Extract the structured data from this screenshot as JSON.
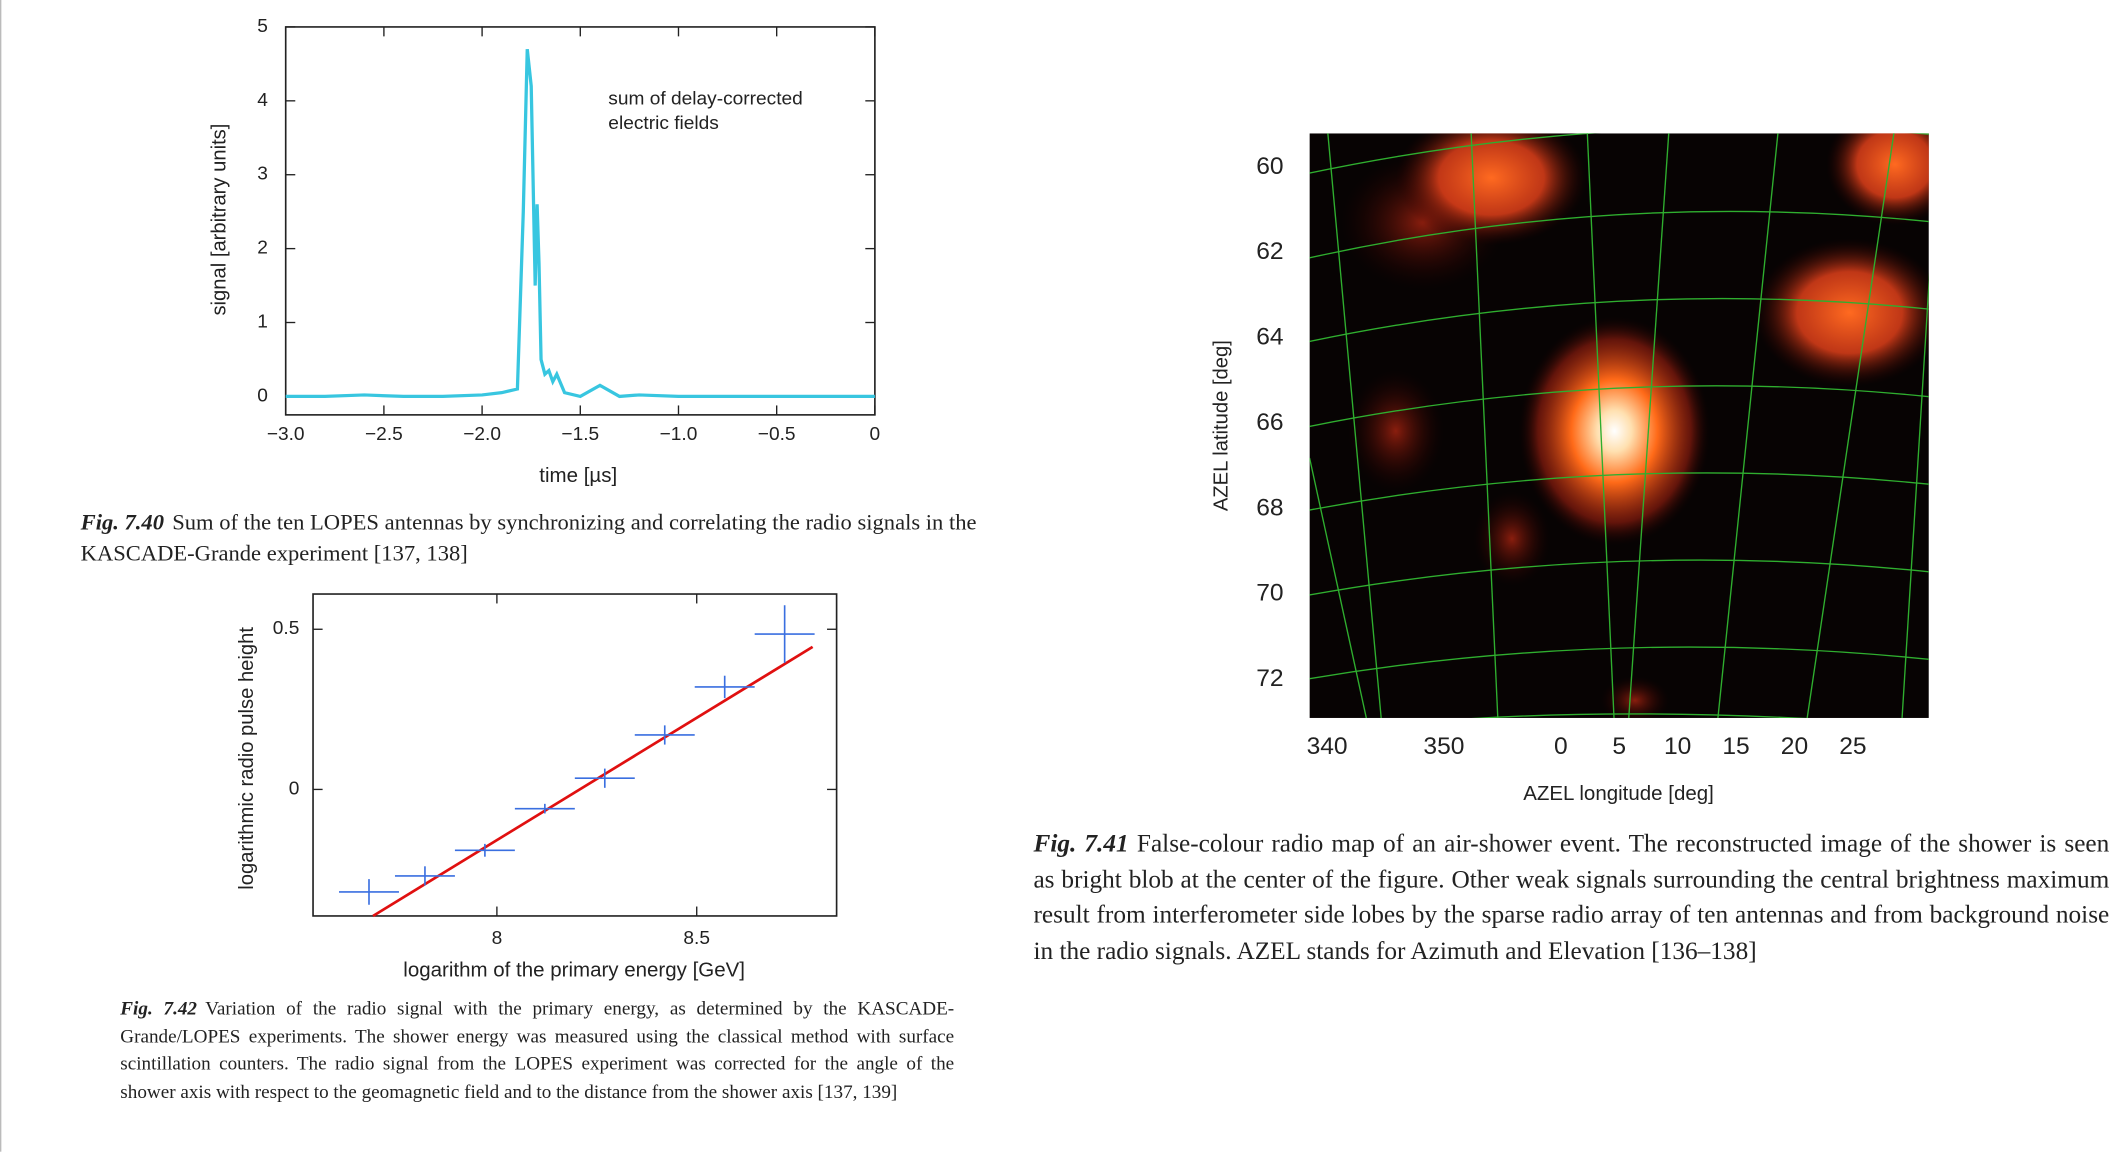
{
  "chart_data": [
    {
      "type": "line",
      "figure_label": "Fig. 7.40",
      "caption": "Sum of the ten LOPES  antennas by synchronizing and correlating the radio signals in the KASCADE-Grande experiment [137, 138]",
      "xlabel": "time [µs]",
      "ylabel": "signal [arbitrary units]",
      "annotation": [
        "sum of delay-corrected",
        "electric fields"
      ],
      "color": "#38c6e0",
      "x": [
        -3.0,
        -2.8,
        -2.6,
        -2.4,
        -2.2,
        -2.0,
        -1.9,
        -1.82,
        -1.79,
        -1.77,
        -1.75,
        -1.73,
        -1.72,
        -1.71,
        -1.7,
        -1.68,
        -1.66,
        -1.64,
        -1.62,
        -1.58,
        -1.5,
        -1.4,
        -1.3,
        -1.2,
        -1.0,
        -0.8,
        -0.6,
        -0.4,
        -0.2,
        0
      ],
      "values": [
        0,
        0,
        0.02,
        0,
        0,
        0.02,
        0.05,
        0.1,
        2.5,
        4.7,
        4.2,
        1.5,
        2.6,
        1.8,
        0.5,
        0.3,
        0.35,
        0.2,
        0.3,
        0.05,
        0,
        0.15,
        0,
        0.02,
        0,
        0,
        0,
        0,
        0,
        0
      ],
      "xlim": [
        -3,
        0
      ],
      "ylim": [
        -0.25,
        5
      ],
      "xticks": [
        {
          "value": -3,
          "label": "−3.0"
        },
        {
          "value": -2.5,
          "label": "−2.5"
        },
        {
          "value": -2,
          "label": "−2.0"
        },
        {
          "value": -1.5,
          "label": "−1.5"
        },
        {
          "value": -1,
          "label": "−1.0"
        },
        {
          "value": -0.5,
          "label": "−0.5"
        },
        0
      ],
      "yticks": [
        0,
        1,
        2,
        3,
        4,
        5
      ]
    },
    {
      "type": "heatmap",
      "figure_label": "Fig. 7.41",
      "caption": "False-colour radio map of an air-shower event. The reconstructed image of the shower is seen as bright blob at the center of the figure. Other weak signals surrounding the central brightness maximum result from interferometer side lobes by the sparse radio array of ten antennas and from background noise in the radio signals. AZEL stands for Azimuth and Elevation [136–138]",
      "xlabel": "AZEL longitude [deg]",
      "ylabel": "AZEL latitude [deg]",
      "xlim": [
        338.5,
        31.5
      ],
      "ylim": [
        59.2,
        72.9
      ],
      "xticks": [
        340,
        350,
        0,
        5,
        10,
        15,
        20,
        25
      ],
      "yticks": [
        60,
        62,
        64,
        66,
        68,
        70,
        72
      ]
    },
    {
      "type": "scatter",
      "figure_label": "Fig. 7.42",
      "caption": "Variation of the radio signal with the primary energy, as determined by the KASCADE-Grande/LOPES experiments. The shower energy was measured using the classical method with surface scintillation counters. The radio signal from the LOPES experiment was corrected for the angle of the shower axis with respect to the geomagnetic field and to the distance from the shower axis [137, 139]",
      "xlabel": "logarithm of the primary energy [GeV]",
      "ylabel": "logarithmic radio pulse height",
      "color": "#3a6fe0",
      "x": [
        7.68,
        7.82,
        7.97,
        8.12,
        8.27,
        8.42,
        8.57,
        8.72
      ],
      "values": [
        -0.32,
        -0.27,
        -0.19,
        -0.06,
        0.035,
        0.17,
        0.32,
        0.485
      ],
      "xerr": [
        0.075,
        0.075,
        0.075,
        0.075,
        0.075,
        0.075,
        0.075,
        0.075
      ],
      "yerr": [
        0.04,
        0.03,
        0.02,
        0.015,
        0.03,
        0.03,
        0.035,
        0.09
      ],
      "fit": {
        "color": "#e01010",
        "x": [
          7.69,
          8.79
        ],
        "values": [
          -0.395,
          0.445
        ]
      },
      "xlim": [
        7.54,
        8.85
      ],
      "ylim": [
        -0.395,
        0.61
      ],
      "xticks": [
        8,
        8.5
      ],
      "yticks": [
        0,
        0.5
      ]
    }
  ]
}
